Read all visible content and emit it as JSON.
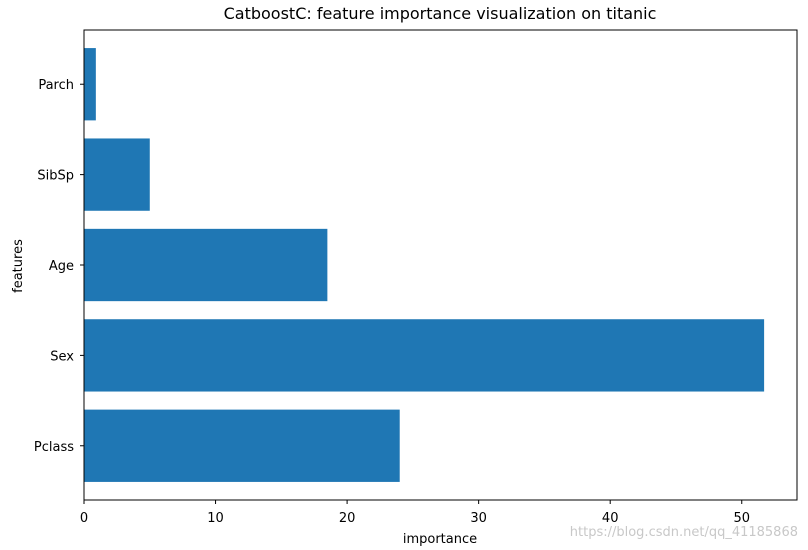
{
  "chart_data": {
    "type": "bar",
    "orientation": "horizontal",
    "title": "CatboostC: feature importance visualization on titanic",
    "xlabel": "importance",
    "ylabel": "features",
    "categories": [
      "Pclass",
      "Sex",
      "Age",
      "SibSp",
      "Parch"
    ],
    "values": [
      24.0,
      51.7,
      18.5,
      5.0,
      0.9
    ],
    "xlim": [
      0,
      54.2
    ],
    "xticks": [
      0,
      10,
      20,
      30,
      40,
      50
    ],
    "bar_color": "#1f77b4",
    "grid": false,
    "legend": "none"
  },
  "watermark": "https://blog.csdn.net/qq_41185868"
}
